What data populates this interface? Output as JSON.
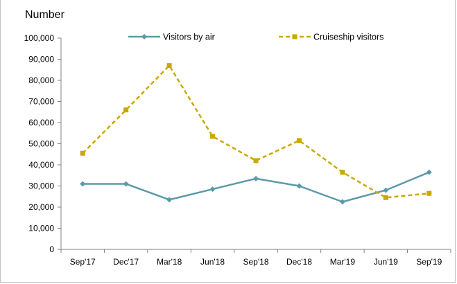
{
  "chart_data": {
    "type": "line",
    "title": "",
    "ylabel": "Number",
    "xlabel": "",
    "categories": [
      "Sep'17",
      "Dec'17",
      "Mar'18",
      "Jun'18",
      "Sep'18",
      "Dec'18",
      "Mar'19",
      "Jun'19",
      "Sep'19"
    ],
    "ylim": [
      0,
      100000
    ],
    "yticks": [
      "0",
      "10,000",
      "20,000",
      "30,000",
      "40,000",
      "50,000",
      "60,000",
      "70,000",
      "80,000",
      "90,000",
      "100,000"
    ],
    "ytick_values": [
      0,
      10000,
      20000,
      30000,
      40000,
      50000,
      60000,
      70000,
      80000,
      90000,
      100000
    ],
    "grid": false,
    "legend_position": "top",
    "series": [
      {
        "name": "Visitors by air",
        "color": "#5b9aa8",
        "marker": "diamond",
        "line_style": "solid",
        "values": [
          31000,
          31000,
          23500,
          28500,
          33500,
          30000,
          22500,
          28000,
          36500
        ]
      },
      {
        "name": "Cruiseship visitors",
        "color": "#c9a800",
        "marker": "square",
        "line_style": "dashed",
        "values": [
          45500,
          66000,
          87000,
          53500,
          42000,
          51500,
          36500,
          24500,
          26500
        ]
      }
    ]
  }
}
